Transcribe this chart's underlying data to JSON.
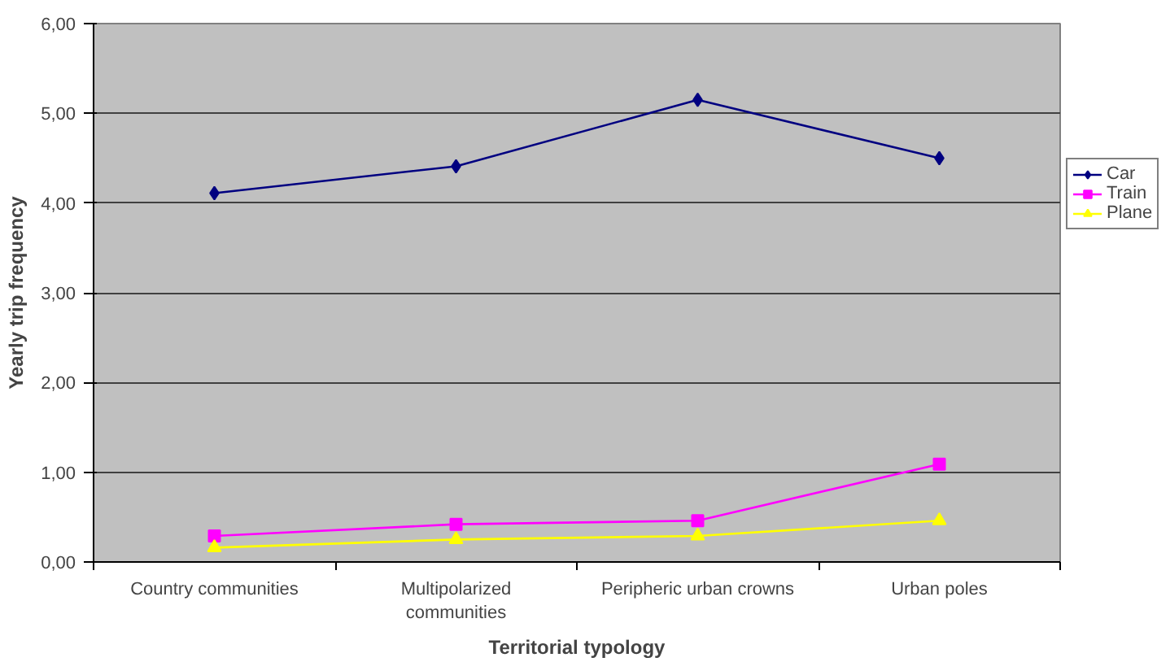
{
  "chart_data": {
    "type": "line",
    "xlabel": "Territorial typology",
    "ylabel": "Yearly trip frequency",
    "categories": [
      "Country communities",
      "Multipolarized\ncommunities",
      "Peripheric urban crowns",
      "Urban poles"
    ],
    "series": [
      {
        "name": "Car",
        "color": "#000080",
        "marker": "diamond",
        "values": [
          4.11,
          4.41,
          5.15,
          4.5
        ]
      },
      {
        "name": "Train",
        "color": "#ff00ff",
        "marker": "square",
        "values": [
          0.29,
          0.42,
          0.46,
          1.09
        ]
      },
      {
        "name": "Plane",
        "color": "#ffff00",
        "marker": "triangle",
        "values": [
          0.16,
          0.25,
          0.29,
          0.46
        ]
      }
    ],
    "ylim": [
      0,
      6
    ],
    "yticks": [
      {
        "value": 0,
        "label": "0,00"
      },
      {
        "value": 1,
        "label": "1,00"
      },
      {
        "value": 2,
        "label": "2,00"
      },
      {
        "value": 3,
        "label": "3,00"
      },
      {
        "value": 4,
        "label": "4,00"
      },
      {
        "value": 5,
        "label": "5,00"
      },
      {
        "value": 6,
        "label": "6,00"
      }
    ],
    "grid": "y",
    "legend": "right",
    "line_style": "solid"
  }
}
